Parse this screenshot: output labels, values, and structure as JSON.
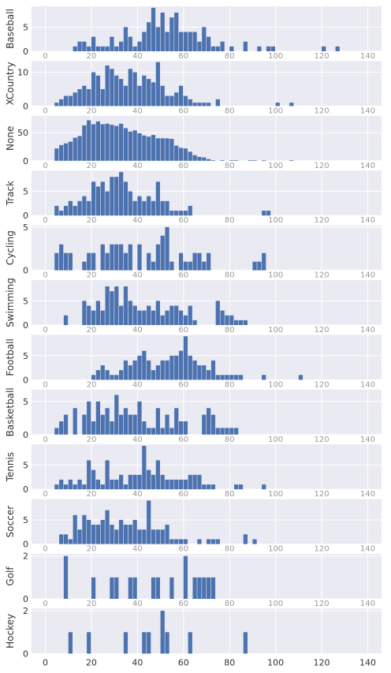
{
  "chart_data": {
    "type": "bar",
    "style": "stacked histogram panels, shared x-axis",
    "colors": {
      "bar": "#4c72b0",
      "background": "#eaeaf2",
      "grid": "#ffffff",
      "text": "#333333"
    },
    "xlim": [
      -6,
      146
    ],
    "xticks": [
      0,
      20,
      40,
      60,
      80,
      100,
      120,
      140
    ],
    "xtick_labels": [
      "0",
      "20",
      "40",
      "60",
      "80",
      "100",
      "120",
      "140"
    ],
    "bin_width": 2,
    "grid": true,
    "panels": [
      {
        "ylabel": "Baseball",
        "ylim": [
          0,
          9.3
        ],
        "yticks": [
          0,
          5
        ],
        "ytick_labels": [
          "0",
          "5"
        ],
        "x": [
          12,
          14,
          16,
          18,
          20,
          22,
          24,
          26,
          28,
          30,
          32,
          34,
          36,
          38,
          40,
          42,
          44,
          46,
          48,
          50,
          52,
          54,
          56,
          58,
          60,
          62,
          64,
          66,
          68,
          70,
          72,
          74,
          76,
          78,
          80,
          82,
          84,
          86,
          88,
          90,
          92,
          94,
          96,
          98,
          100,
          102,
          104,
          106,
          108,
          110,
          112,
          114,
          116,
          118,
          120,
          122,
          124,
          126,
          128
        ],
        "values": [
          1,
          2,
          2,
          1,
          3,
          1,
          1,
          1,
          3,
          1,
          2,
          5,
          3,
          1,
          2,
          4,
          6,
          9,
          5,
          8,
          4,
          7,
          8,
          4,
          4,
          4,
          4,
          2,
          5,
          3,
          1,
          1,
          2,
          0,
          1,
          0,
          0,
          2,
          0,
          0,
          1,
          0,
          1,
          1,
          0,
          0,
          0,
          0,
          0,
          0,
          0,
          0,
          0,
          0,
          1,
          0,
          0,
          1,
          0
        ]
      },
      {
        "ylabel": "XCountry",
        "ylim": [
          0,
          13.3
        ],
        "yticks": [
          0,
          10
        ],
        "ytick_labels": [
          "0",
          "10"
        ],
        "x": [
          4,
          6,
          8,
          10,
          12,
          14,
          16,
          18,
          20,
          22,
          24,
          26,
          28,
          30,
          32,
          34,
          36,
          38,
          40,
          42,
          44,
          46,
          48,
          50,
          52,
          54,
          56,
          58,
          60,
          62,
          64,
          66,
          68,
          70,
          72,
          74,
          76,
          78,
          80,
          82,
          84,
          86,
          88,
          90,
          92,
          94,
          96,
          98,
          100,
          102,
          104,
          106
        ],
        "values": [
          1,
          2,
          3,
          3,
          4,
          5,
          6,
          5,
          10,
          9,
          5,
          12,
          11,
          9,
          8,
          6,
          11,
          10,
          6,
          9,
          8,
          7,
          13,
          6,
          3,
          3,
          4,
          6,
          3,
          2,
          1,
          1,
          1,
          1,
          0,
          2,
          0,
          0,
          0,
          0,
          0,
          0,
          0,
          0,
          0,
          0,
          0,
          0,
          1,
          0,
          0,
          1
        ]
      },
      {
        "ylabel": "None",
        "ylim": [
          0,
          80
        ],
        "yticks": [
          0,
          50
        ],
        "ytick_labels": [
          "0",
          "50"
        ],
        "x": [
          4,
          6,
          8,
          10,
          12,
          14,
          16,
          18,
          20,
          22,
          24,
          26,
          28,
          30,
          32,
          34,
          36,
          38,
          40,
          42,
          44,
          46,
          48,
          50,
          52,
          54,
          56,
          58,
          60,
          62,
          64,
          66,
          68,
          70,
          72,
          74,
          76,
          78,
          80,
          82,
          84,
          86,
          88,
          90,
          92,
          94,
          96,
          98,
          100,
          102,
          104,
          106
        ],
        "values": [
          22,
          28,
          31,
          34,
          41,
          44,
          63,
          72,
          65,
          70,
          65,
          66,
          64,
          62,
          66,
          58,
          52,
          54,
          49,
          45,
          43,
          46,
          40,
          40,
          40,
          39,
          27,
          23,
          22,
          16,
          10,
          7,
          6,
          3,
          1,
          0,
          1,
          0,
          1,
          1,
          0,
          0,
          1,
          1,
          0,
          1,
          0,
          0,
          0,
          0,
          0,
          1
        ]
      },
      {
        "ylabel": "Track",
        "ylim": [
          0,
          9.3
        ],
        "yticks": [
          0,
          5
        ],
        "ytick_labels": [
          "0",
          "5"
        ],
        "x": [
          4,
          6,
          8,
          10,
          12,
          14,
          16,
          18,
          20,
          22,
          24,
          26,
          28,
          30,
          32,
          34,
          36,
          38,
          40,
          42,
          44,
          46,
          48,
          50,
          52,
          54,
          56,
          58,
          60,
          62,
          64,
          66,
          68,
          70,
          72,
          74,
          76,
          78,
          80,
          82,
          84,
          86,
          88,
          90,
          92,
          94,
          96,
          98,
          100,
          102,
          104
        ],
        "values": [
          2,
          1,
          2,
          3,
          2,
          3,
          4,
          3,
          7,
          6,
          7,
          5,
          8,
          8,
          9,
          7,
          5,
          3,
          4,
          3,
          4,
          3,
          7,
          3,
          3,
          1,
          1,
          1,
          1,
          2,
          0,
          0,
          0,
          0,
          0,
          0,
          0,
          0,
          0,
          0,
          0,
          0,
          0,
          0,
          0,
          1,
          1,
          0,
          0,
          0,
          0
        ]
      },
      {
        "ylabel": "Cycling",
        "ylim": [
          0,
          5.2
        ],
        "yticks": [
          0,
          5
        ],
        "ytick_labels": [
          "0",
          "5"
        ],
        "x": [
          4,
          6,
          8,
          10,
          12,
          14,
          16,
          18,
          20,
          22,
          24,
          26,
          28,
          30,
          32,
          34,
          36,
          38,
          40,
          42,
          44,
          46,
          48,
          50,
          52,
          54,
          56,
          58,
          60,
          62,
          64,
          66,
          68,
          70,
          72,
          74,
          76,
          78,
          80,
          82,
          84,
          86,
          88,
          90,
          92,
          94,
          96,
          98
        ],
        "values": [
          2,
          3,
          2,
          2,
          0,
          0,
          1,
          2,
          2,
          0,
          3,
          2,
          3,
          3,
          3,
          2,
          3,
          0,
          3,
          0,
          2,
          1,
          3,
          4,
          5,
          1,
          0,
          2,
          1,
          1,
          2,
          2,
          1,
          2,
          0,
          0,
          0,
          0,
          0,
          0,
          0,
          0,
          0,
          1,
          1,
          2,
          0,
          0
        ]
      },
      {
        "ylabel": "Swimming",
        "ylim": [
          0,
          9.3
        ],
        "yticks": [
          0,
          5
        ],
        "ytick_labels": [
          "0",
          "5"
        ],
        "x": [
          8,
          10,
          12,
          14,
          16,
          18,
          20,
          22,
          24,
          26,
          28,
          30,
          32,
          34,
          36,
          38,
          40,
          42,
          44,
          46,
          48,
          50,
          52,
          54,
          56,
          58,
          60,
          62,
          64,
          66,
          68,
          70,
          72,
          74,
          76,
          78,
          80,
          82,
          84,
          86,
          88,
          90,
          92,
          94,
          96,
          98,
          100,
          102,
          104,
          106,
          108
        ],
        "values": [
          2,
          0,
          0,
          0,
          5,
          4,
          3,
          5,
          3,
          8,
          7,
          8,
          4,
          8,
          5,
          4,
          3,
          3,
          4,
          3,
          5,
          2,
          3,
          4,
          4,
          3,
          2,
          4,
          1,
          0,
          0,
          0,
          0,
          5,
          3,
          2,
          2,
          1,
          1,
          1,
          0,
          0,
          0,
          0,
          0,
          0,
          0,
          0,
          0,
          0,
          0
        ]
      },
      {
        "ylabel": "Football",
        "ylim": [
          0,
          9.3
        ],
        "yticks": [
          0,
          5
        ],
        "ytick_labels": [
          "0",
          "5"
        ],
        "x": [
          16,
          18,
          20,
          22,
          24,
          26,
          28,
          30,
          32,
          34,
          36,
          38,
          40,
          42,
          44,
          46,
          48,
          50,
          52,
          54,
          56,
          58,
          60,
          62,
          64,
          66,
          68,
          70,
          72,
          74,
          76,
          78,
          80,
          82,
          84,
          86,
          88,
          90,
          92,
          94,
          96,
          98,
          100,
          102,
          104,
          106,
          108,
          110
        ],
        "values": [
          0,
          0,
          1,
          2,
          3,
          2,
          1,
          1,
          2,
          4,
          3,
          4,
          5,
          6,
          4,
          2,
          3,
          4,
          4,
          5,
          5,
          6,
          9,
          5,
          4,
          3,
          3,
          2,
          4,
          1,
          1,
          1,
          1,
          1,
          1,
          0,
          0,
          0,
          0,
          1,
          0,
          0,
          0,
          0,
          0,
          0,
          0,
          1
        ]
      },
      {
        "ylabel": "Basketball",
        "ylim": [
          0,
          6.8
        ],
        "yticks": [
          0,
          5
        ],
        "ytick_labels": [
          "0",
          "5"
        ],
        "x": [
          4,
          6,
          8,
          10,
          12,
          14,
          16,
          18,
          20,
          22,
          24,
          26,
          28,
          30,
          32,
          34,
          36,
          38,
          40,
          42,
          44,
          46,
          48,
          50,
          52,
          54,
          56,
          58,
          60,
          62,
          64,
          66,
          68,
          70,
          72,
          74,
          76,
          78,
          80,
          82,
          84,
          86,
          88,
          90,
          92,
          94,
          96,
          98,
          100,
          102,
          104,
          106,
          108
        ],
        "values": [
          1,
          2,
          3,
          0,
          4,
          0,
          3,
          5,
          2,
          5,
          3,
          4,
          2,
          6,
          3,
          4,
          3,
          3,
          5,
          2,
          1,
          1,
          4,
          1,
          3,
          1,
          4,
          2,
          2,
          0,
          0,
          0,
          3,
          4,
          3,
          1,
          1,
          1,
          1,
          1,
          0,
          0,
          0,
          0,
          0,
          0,
          0,
          0,
          0,
          0,
          0,
          0,
          0
        ]
      },
      {
        "ylabel": "Tennis",
        "ylim": [
          0,
          9.3
        ],
        "yticks": [
          0,
          5
        ],
        "ytick_labels": [
          "0",
          "5"
        ],
        "x": [
          4,
          6,
          8,
          10,
          12,
          14,
          16,
          18,
          20,
          22,
          24,
          26,
          28,
          30,
          32,
          34,
          36,
          38,
          40,
          42,
          44,
          46,
          48,
          50,
          52,
          54,
          56,
          58,
          60,
          62,
          64,
          66,
          68,
          70,
          72,
          74,
          76,
          78,
          80,
          82,
          84,
          86,
          88,
          90,
          92,
          94,
          96,
          98,
          100,
          102,
          104,
          106
        ],
        "values": [
          1,
          2,
          1,
          2,
          1,
          2,
          1,
          6,
          4,
          2,
          1,
          6,
          2,
          2,
          3,
          1,
          3,
          3,
          3,
          9,
          4,
          3,
          6,
          3,
          2,
          2,
          2,
          2,
          2,
          3,
          3,
          3,
          1,
          1,
          1,
          0,
          0,
          0,
          0,
          1,
          1,
          0,
          0,
          0,
          0,
          1,
          0,
          0,
          0,
          0,
          0,
          0
        ]
      },
      {
        "ylabel": "Soccer",
        "ylim": [
          0,
          9.3
        ],
        "yticks": [
          0,
          5
        ],
        "ytick_labels": [
          "0",
          "5"
        ],
        "x": [
          6,
          8,
          10,
          12,
          14,
          16,
          18,
          20,
          22,
          24,
          26,
          28,
          30,
          32,
          34,
          36,
          38,
          40,
          42,
          44,
          46,
          48,
          50,
          52,
          54,
          56,
          58,
          60,
          62,
          64,
          66,
          68,
          70,
          72,
          74,
          76,
          78,
          80,
          82,
          84,
          86,
          88,
          90,
          92,
          94,
          96,
          98,
          100,
          102,
          104,
          106
        ],
        "values": [
          2,
          2,
          1,
          6,
          3,
          6,
          5,
          4,
          4,
          5,
          7,
          4,
          3,
          5,
          4,
          4,
          5,
          3,
          3,
          9,
          3,
          3,
          3,
          4,
          1,
          1,
          1,
          1,
          0,
          0,
          1,
          0,
          1,
          1,
          1,
          0,
          0,
          0,
          0,
          0,
          2,
          0,
          1,
          0,
          0,
          0,
          0,
          0,
          0,
          0,
          0
        ]
      },
      {
        "ylabel": "Golf",
        "ylim": [
          0,
          2.1
        ],
        "yticks": [
          0,
          2
        ],
        "ytick_labels": [
          "0",
          "2"
        ],
        "x": [
          8,
          10,
          12,
          14,
          16,
          18,
          20,
          22,
          24,
          26,
          28,
          30,
          32,
          34,
          36,
          38,
          40,
          42,
          44,
          46,
          48,
          50,
          52,
          54,
          56,
          58,
          60,
          62,
          64,
          66,
          68,
          70,
          72,
          74,
          76,
          78
        ],
        "values": [
          2,
          0,
          0,
          0,
          0,
          0,
          1,
          0,
          0,
          0,
          1,
          1,
          0,
          0,
          1,
          1,
          0,
          0,
          0,
          1,
          1,
          0,
          0,
          1,
          0,
          0,
          2,
          0,
          1,
          1,
          1,
          1,
          1,
          0,
          0,
          0
        ]
      },
      {
        "ylabel": "Hockey",
        "ylim": [
          0,
          2.1
        ],
        "yticks": [
          0,
          2
        ],
        "ytick_labels": [
          "0",
          "2"
        ],
        "x": [
          10,
          12,
          14,
          16,
          18,
          20,
          22,
          24,
          26,
          28,
          30,
          32,
          34,
          36,
          38,
          40,
          42,
          44,
          46,
          48,
          50,
          52,
          54,
          56,
          58,
          60,
          62,
          64,
          66,
          68,
          70,
          72,
          74,
          76,
          78,
          80,
          82,
          84,
          86,
          88
        ],
        "values": [
          1,
          0,
          0,
          0,
          1,
          0,
          0,
          0,
          0,
          0,
          0,
          0,
          1,
          0,
          0,
          0,
          1,
          1,
          0,
          0,
          2,
          1,
          0,
          0,
          0,
          0,
          1,
          0,
          0,
          0,
          0,
          0,
          0,
          0,
          0,
          0,
          0,
          0,
          1,
          0
        ]
      }
    ]
  }
}
